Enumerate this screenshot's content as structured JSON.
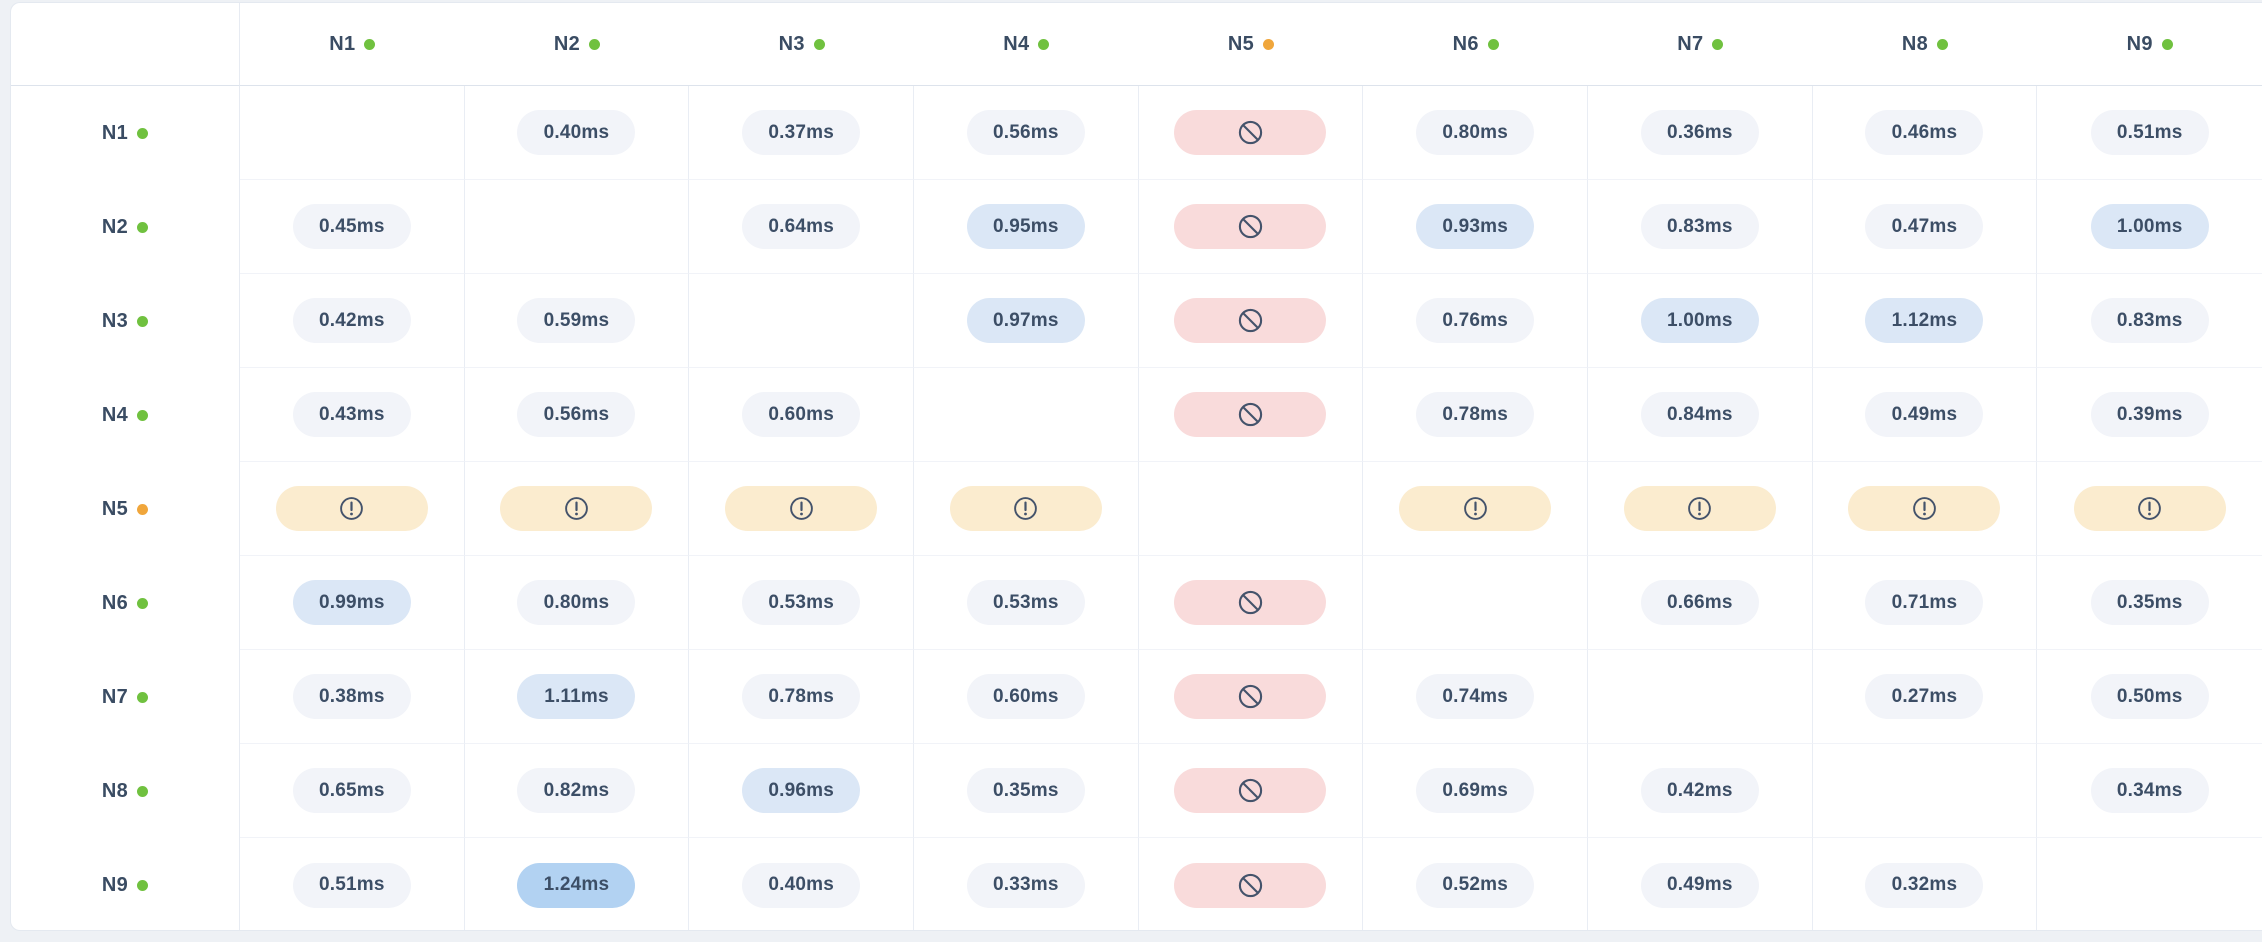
{
  "matrix": {
    "unit": "ms",
    "status_colors": {
      "healthy": "#70c13f",
      "degraded": "#f0a63b"
    },
    "pill_colors": {
      "normal": "#f2f4f9",
      "elevated": "#dbe7f6",
      "high": "#b2d2f2",
      "blocked": "#f9dbdb",
      "warning": "#fbeccf"
    },
    "icon_stroke_color": "#44536b",
    "icons": {
      "blocked": "prohibition-icon",
      "warning": "alert-icon"
    },
    "columns": [
      {
        "label": "N1",
        "status": "healthy"
      },
      {
        "label": "N2",
        "status": "healthy"
      },
      {
        "label": "N3",
        "status": "healthy"
      },
      {
        "label": "N4",
        "status": "healthy"
      },
      {
        "label": "N5",
        "status": "degraded"
      },
      {
        "label": "N6",
        "status": "healthy"
      },
      {
        "label": "N7",
        "status": "healthy"
      },
      {
        "label": "N8",
        "status": "healthy"
      },
      {
        "label": "N9",
        "status": "healthy"
      }
    ],
    "rows": [
      {
        "label": "N1",
        "status": "healthy",
        "cells": [
          {
            "type": "self"
          },
          {
            "type": "latency",
            "value": "0.40ms",
            "level": "normal"
          },
          {
            "type": "latency",
            "value": "0.37ms",
            "level": "normal"
          },
          {
            "type": "latency",
            "value": "0.56ms",
            "level": "normal"
          },
          {
            "type": "blocked"
          },
          {
            "type": "latency",
            "value": "0.80ms",
            "level": "normal"
          },
          {
            "type": "latency",
            "value": "0.36ms",
            "level": "normal"
          },
          {
            "type": "latency",
            "value": "0.46ms",
            "level": "normal"
          },
          {
            "type": "latency",
            "value": "0.51ms",
            "level": "normal"
          }
        ]
      },
      {
        "label": "N2",
        "status": "healthy",
        "cells": [
          {
            "type": "latency",
            "value": "0.45ms",
            "level": "normal"
          },
          {
            "type": "self"
          },
          {
            "type": "latency",
            "value": "0.64ms",
            "level": "normal"
          },
          {
            "type": "latency",
            "value": "0.95ms",
            "level": "elevated"
          },
          {
            "type": "blocked"
          },
          {
            "type": "latency",
            "value": "0.93ms",
            "level": "elevated"
          },
          {
            "type": "latency",
            "value": "0.83ms",
            "level": "normal"
          },
          {
            "type": "latency",
            "value": "0.47ms",
            "level": "normal"
          },
          {
            "type": "latency",
            "value": "1.00ms",
            "level": "elevated"
          }
        ]
      },
      {
        "label": "N3",
        "status": "healthy",
        "cells": [
          {
            "type": "latency",
            "value": "0.42ms",
            "level": "normal"
          },
          {
            "type": "latency",
            "value": "0.59ms",
            "level": "normal"
          },
          {
            "type": "self"
          },
          {
            "type": "latency",
            "value": "0.97ms",
            "level": "elevated"
          },
          {
            "type": "blocked"
          },
          {
            "type": "latency",
            "value": "0.76ms",
            "level": "normal"
          },
          {
            "type": "latency",
            "value": "1.00ms",
            "level": "elevated"
          },
          {
            "type": "latency",
            "value": "1.12ms",
            "level": "elevated"
          },
          {
            "type": "latency",
            "value": "0.83ms",
            "level": "normal"
          }
        ]
      },
      {
        "label": "N4",
        "status": "healthy",
        "cells": [
          {
            "type": "latency",
            "value": "0.43ms",
            "level": "normal"
          },
          {
            "type": "latency",
            "value": "0.56ms",
            "level": "normal"
          },
          {
            "type": "latency",
            "value": "0.60ms",
            "level": "normal"
          },
          {
            "type": "self"
          },
          {
            "type": "blocked"
          },
          {
            "type": "latency",
            "value": "0.78ms",
            "level": "normal"
          },
          {
            "type": "latency",
            "value": "0.84ms",
            "level": "normal"
          },
          {
            "type": "latency",
            "value": "0.49ms",
            "level": "normal"
          },
          {
            "type": "latency",
            "value": "0.39ms",
            "level": "normal"
          }
        ]
      },
      {
        "label": "N5",
        "status": "degraded",
        "cells": [
          {
            "type": "warning"
          },
          {
            "type": "warning"
          },
          {
            "type": "warning"
          },
          {
            "type": "warning"
          },
          {
            "type": "self"
          },
          {
            "type": "warning"
          },
          {
            "type": "warning"
          },
          {
            "type": "warning"
          },
          {
            "type": "warning"
          }
        ]
      },
      {
        "label": "N6",
        "status": "healthy",
        "cells": [
          {
            "type": "latency",
            "value": "0.99ms",
            "level": "elevated"
          },
          {
            "type": "latency",
            "value": "0.80ms",
            "level": "normal"
          },
          {
            "type": "latency",
            "value": "0.53ms",
            "level": "normal"
          },
          {
            "type": "latency",
            "value": "0.53ms",
            "level": "normal"
          },
          {
            "type": "blocked"
          },
          {
            "type": "self"
          },
          {
            "type": "latency",
            "value": "0.66ms",
            "level": "normal"
          },
          {
            "type": "latency",
            "value": "0.71ms",
            "level": "normal"
          },
          {
            "type": "latency",
            "value": "0.35ms",
            "level": "normal"
          }
        ]
      },
      {
        "label": "N7",
        "status": "healthy",
        "cells": [
          {
            "type": "latency",
            "value": "0.38ms",
            "level": "normal"
          },
          {
            "type": "latency",
            "value": "1.11ms",
            "level": "elevated"
          },
          {
            "type": "latency",
            "value": "0.78ms",
            "level": "normal"
          },
          {
            "type": "latency",
            "value": "0.60ms",
            "level": "normal"
          },
          {
            "type": "blocked"
          },
          {
            "type": "latency",
            "value": "0.74ms",
            "level": "normal"
          },
          {
            "type": "self"
          },
          {
            "type": "latency",
            "value": "0.27ms",
            "level": "normal"
          },
          {
            "type": "latency",
            "value": "0.50ms",
            "level": "normal"
          }
        ]
      },
      {
        "label": "N8",
        "status": "healthy",
        "cells": [
          {
            "type": "latency",
            "value": "0.65ms",
            "level": "normal"
          },
          {
            "type": "latency",
            "value": "0.82ms",
            "level": "normal"
          },
          {
            "type": "latency",
            "value": "0.96ms",
            "level": "elevated"
          },
          {
            "type": "latency",
            "value": "0.35ms",
            "level": "normal"
          },
          {
            "type": "blocked"
          },
          {
            "type": "latency",
            "value": "0.69ms",
            "level": "normal"
          },
          {
            "type": "latency",
            "value": "0.42ms",
            "level": "normal"
          },
          {
            "type": "self"
          },
          {
            "type": "latency",
            "value": "0.34ms",
            "level": "normal"
          }
        ]
      },
      {
        "label": "N9",
        "status": "healthy",
        "cells": [
          {
            "type": "latency",
            "value": "0.51ms",
            "level": "normal"
          },
          {
            "type": "latency",
            "value": "1.24ms",
            "level": "high"
          },
          {
            "type": "latency",
            "value": "0.40ms",
            "level": "normal"
          },
          {
            "type": "latency",
            "value": "0.33ms",
            "level": "normal"
          },
          {
            "type": "blocked"
          },
          {
            "type": "latency",
            "value": "0.52ms",
            "level": "normal"
          },
          {
            "type": "latency",
            "value": "0.49ms",
            "level": "normal"
          },
          {
            "type": "latency",
            "value": "0.32ms",
            "level": "normal"
          },
          {
            "type": "self"
          }
        ]
      }
    ]
  }
}
